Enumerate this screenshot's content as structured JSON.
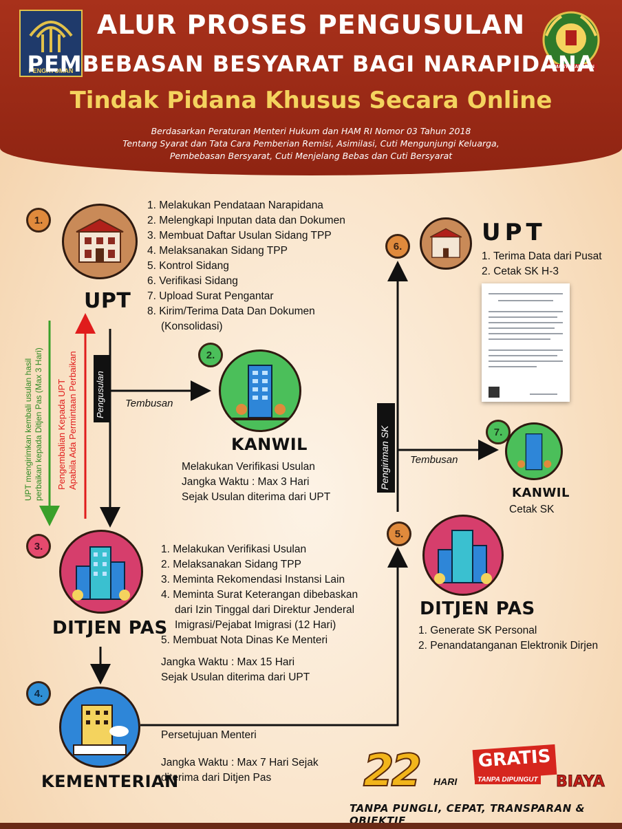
{
  "header": {
    "title_line1": "ALUR PROSES PENGUSULAN",
    "title_line2": "PEMBEBASAN BESYARAT BAGI NARAPIDANA",
    "title_line3": "Tindak Pidana Khusus Secara Online",
    "subtitle_line1": "Berdasarkan Peraturan Menteri Hukum dan HAM RI Nomor 03 Tahun 2018",
    "subtitle_line2": "Tentang Syarat dan Tata Cara Pemberian Remisi, Asimilasi, Cuti Mengunjungi Keluarga,",
    "subtitle_line3": "Pembebasan Bersyarat, Cuti Menjelang Bebas dan Cuti Bersyarat",
    "logo_left_label": "PENGAYOMAN",
    "logo_right_label": "PEMASYARAKATAN"
  },
  "steps": {
    "s1": {
      "number": "1.",
      "label": "UPT",
      "items": [
        "1. Melakukan Pendataan Narapidana",
        "2. Melengkapi Inputan data dan Dokumen",
        "3. Membuat Daftar Usulan Sidang TPP",
        "4. Melaksanakan Sidang TPP",
        "5. Kontrol Sidang",
        "6. Verifikasi Sidang",
        "7. Upload Surat Pengantar",
        "8. Kirim/Terima Data Dan Dokumen",
        "(Konsolidasi)"
      ]
    },
    "s2": {
      "number": "2.",
      "label": "KANWIL",
      "desc": [
        "Melakukan Verifikasi Usulan",
        "Jangka Waktu : Max 3 Hari",
        "Sejak Usulan diterima dari UPT"
      ]
    },
    "s3": {
      "number": "3.",
      "label": "DITJEN PAS",
      "items": [
        "1. Melakukan Verifikasi Usulan",
        "2. Melaksanakan Sidang TPP",
        "3. Meminta Rekomendasi Instansi Lain",
        "4. Meminta Surat Keterangan dibebaskan",
        "dari Izin Tinggal dari Direktur Jenderal",
        "Imigrasi/Pejabat Imigrasi  (12 Hari)",
        "5. Membuat Nota Dinas Ke Menteri"
      ],
      "note": [
        "Jangka Waktu : Max 15 Hari",
        "Sejak Usulan diterima dari UPT"
      ]
    },
    "s4": {
      "number": "4.",
      "label": "KEMENTERIAN",
      "desc": [
        "Persetujuan Menteri",
        "Jangka Waktu : Max 7 Hari Sejak",
        "diterima dari Ditjen Pas"
      ]
    },
    "s5": {
      "number": "5.",
      "label": "DITJEN PAS",
      "items": [
        "1. Generate SK Personal",
        "2. Penandatanganan Elektronik  Dirjen"
      ]
    },
    "s6": {
      "number": "6.",
      "label": "UPT",
      "items": [
        "1. Terima Data dari Pusat",
        "2. Cetak SK H-3"
      ]
    },
    "s7": {
      "number": "7.",
      "label": "KANWIL",
      "desc": "Cetak SK"
    }
  },
  "arrows": {
    "pengusulan": "Pengusulan",
    "tembusan_1": "Tembusan",
    "tembusan_2": "Tembusan",
    "pengiriman_sk": "Pengiriman SK",
    "green_return_1": "UPT mengirimkan kembali usulan hasil",
    "green_return_2": "perbaikan kepada Ditjen Pas (Max 3 Hari)",
    "red_return_1": "Pengembalian Kepada UPT",
    "red_return_2": "Apabila Ada Permintaan Perbaikan"
  },
  "footer": {
    "days": "22",
    "days_unit": "HARI",
    "gratis": "GRATIS",
    "gratis_sub": "TANPA DIPUNGUT",
    "biaya": "BIAYA",
    "tagline": "TANPA PUNGLI, CEPAT, TRANSPARAN & OBJEKTIF"
  },
  "colors": {
    "header_red": "#9a2a15",
    "header_gold": "#f4d35e",
    "upt_orange": "#c98a58",
    "kanwil_green": "#4bbf5a",
    "ditjen_pink": "#d63e6c",
    "kementerian_blue": "#2e86d8",
    "arrow_red": "#e01c1c",
    "arrow_green": "#3aa02a"
  }
}
